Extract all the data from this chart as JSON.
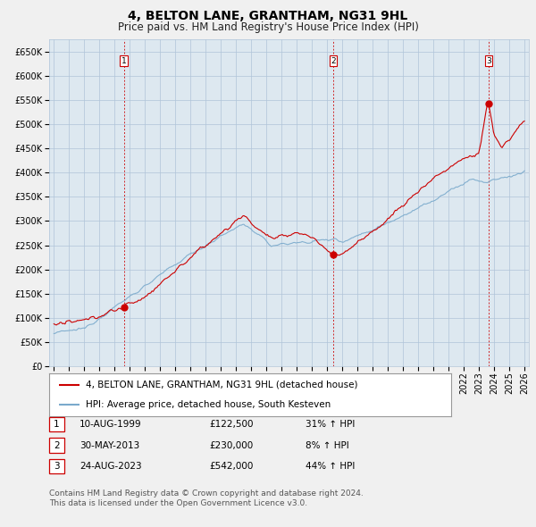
{
  "title": "4, BELTON LANE, GRANTHAM, NG31 9HL",
  "subtitle": "Price paid vs. HM Land Registry's House Price Index (HPI)",
  "ylim": [
    0,
    675000
  ],
  "yticks": [
    0,
    50000,
    100000,
    150000,
    200000,
    250000,
    300000,
    350000,
    400000,
    450000,
    500000,
    550000,
    600000,
    650000
  ],
  "xlim_start": 1994.7,
  "xlim_end": 2026.3,
  "sale_dates": [
    1999.608,
    2013.414,
    2023.644
  ],
  "sale_prices": [
    122500,
    230000,
    542000
  ],
  "sale_labels": [
    "1",
    "2",
    "3"
  ],
  "sale_color": "#cc0000",
  "hpi_color": "#7aaacc",
  "vline_color": "#cc0000",
  "background_color": "#f0f0f0",
  "plot_bg_color": "#dde8f0",
  "grid_color": "#b0c4d8",
  "legend_line_color": "#aaaaaa",
  "legend_entries": [
    "4, BELTON LANE, GRANTHAM, NG31 9HL (detached house)",
    "HPI: Average price, detached house, South Kesteven"
  ],
  "table_rows": [
    [
      "1",
      "10-AUG-1999",
      "£122,500",
      "31% ↑ HPI"
    ],
    [
      "2",
      "30-MAY-2013",
      "£230,000",
      "8% ↑ HPI"
    ],
    [
      "3",
      "24-AUG-2023",
      "£542,000",
      "44% ↑ HPI"
    ]
  ],
  "footnote": "Contains HM Land Registry data © Crown copyright and database right 2024.\nThis data is licensed under the Open Government Licence v3.0.",
  "title_fontsize": 10,
  "subtitle_fontsize": 8.5,
  "tick_fontsize": 7,
  "legend_fontsize": 7.5,
  "table_fontsize": 7.5,
  "footnote_fontsize": 6.5
}
